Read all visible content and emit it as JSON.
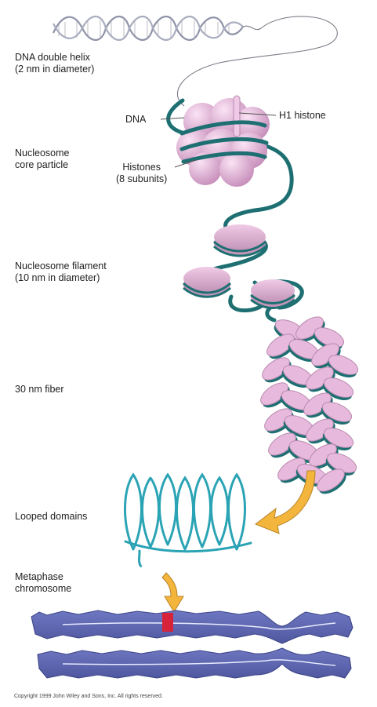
{
  "labels": {
    "dna_helix": [
      "DNA double helix",
      "(2 nm in diameter)"
    ],
    "dna": "DNA",
    "h1": "H1 histone",
    "nucleosome_core": [
      "Nucleosome",
      "core particle"
    ],
    "histones": [
      "Histones",
      "(8 subunits)"
    ],
    "nucleosome_filament": [
      "Nucleosome filament",
      "(10 nm in diameter)"
    ],
    "fiber": "30 nm fiber",
    "looped": "Looped domains",
    "metaphase": [
      "Metaphase",
      "chromosome"
    ]
  },
  "copyright": "Copyright 1999 John Wiley and Sons, Inc. All rights reserved.",
  "colors": {
    "dna": "#1e6f72",
    "histone": "#e7b9dc",
    "histone_dark": "#b98ab0",
    "chromosome": "#5a64b0",
    "band": "#d6233a",
    "arrow": "#f3b53c"
  }
}
